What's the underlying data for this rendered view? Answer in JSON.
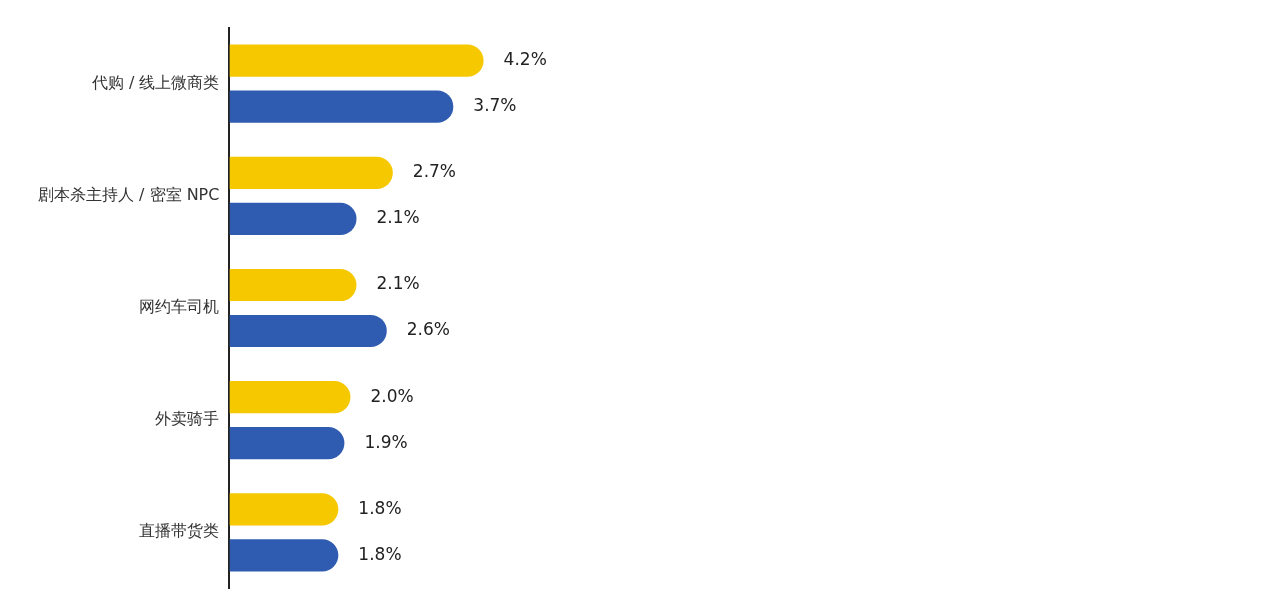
{
  "chart_data": {
    "type": "bar",
    "orientation": "horizontal",
    "categories": [
      "代购 / 线上微商类",
      "剧本杀主持人 / 密室 NPC",
      "网约车司机",
      "外卖骑手",
      "直播带货类"
    ],
    "series": [
      {
        "color": "#f5c800",
        "values": [
          4.2,
          2.7,
          2.1,
          2.0,
          1.8
        ],
        "value_labels": [
          "4.2%",
          "2.7%",
          "2.1%",
          "2.0%",
          "1.8%"
        ]
      },
      {
        "color": "#2f5cb0",
        "values": [
          3.7,
          2.1,
          2.6,
          1.9,
          1.8
        ],
        "value_labels": [
          "3.7%",
          "2.1%",
          "2.6%",
          "1.9%",
          "1.8%"
        ]
      }
    ],
    "tick_labels": "y",
    "legend": false
  }
}
